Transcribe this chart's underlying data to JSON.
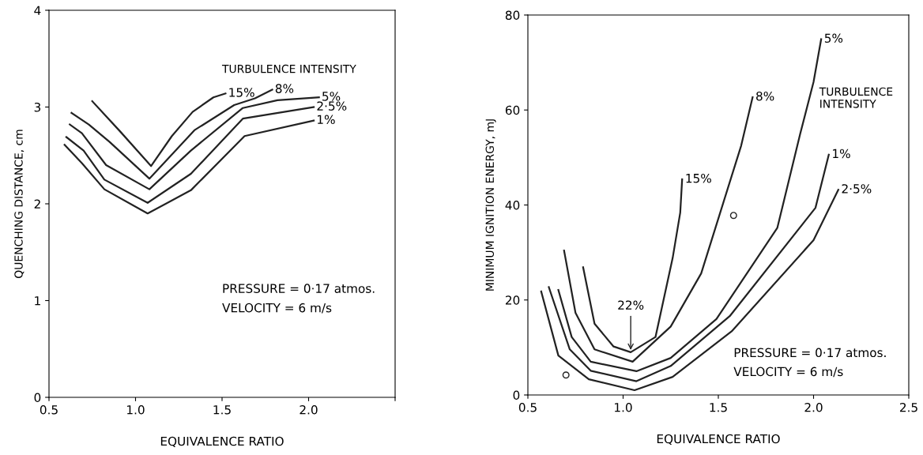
{
  "chart_data": [
    {
      "type": "line",
      "xlabel": "EQUIVALENCE RATIO",
      "ylabel": "QUENCHING DISTANCE, cm",
      "legend_title": "TURBULENCE INTENSITY",
      "xlim": [
        0.5,
        2.5
      ],
      "xticks": [
        {
          "value": 0.5,
          "label": "0.5"
        },
        {
          "value": 1.0,
          "label": "1.0"
        },
        {
          "value": 1.5,
          "label": "1.5"
        },
        {
          "value": 2.0,
          "label": "2.0"
        },
        {
          "value": 2.5,
          "label": null
        }
      ],
      "ylim": [
        0,
        4
      ],
      "yticks": [
        0,
        1,
        2,
        3,
        4
      ],
      "grid": false,
      "legend": false,
      "marker": "none",
      "line_style": "solid",
      "series": [
        {
          "name": "15%",
          "color": "#222222",
          "x": [
            0.75,
            0.91,
            1.09,
            1.21,
            1.33,
            1.45,
            1.52
          ],
          "values": [
            3.06,
            2.75,
            2.39,
            2.7,
            2.95,
            3.1,
            3.14
          ]
        },
        {
          "name": "8%",
          "color": "#222222",
          "x": [
            0.63,
            0.73,
            0.85,
            1.08,
            1.34,
            1.57,
            1.69,
            1.79
          ],
          "values": [
            2.94,
            2.82,
            2.64,
            2.26,
            2.76,
            3.02,
            3.09,
            3.18
          ]
        },
        {
          "name": "5%",
          "color": "#222222",
          "x": [
            0.62,
            0.69,
            0.83,
            1.08,
            1.32,
            1.62,
            1.82,
            2.06
          ],
          "values": [
            2.82,
            2.73,
            2.4,
            2.15,
            2.55,
            2.99,
            3.07,
            3.1
          ]
        },
        {
          "name": "2·5%",
          "color": "#222222",
          "x": [
            0.6,
            0.7,
            0.82,
            1.07,
            1.32,
            1.62,
            2.03
          ],
          "values": [
            2.69,
            2.55,
            2.25,
            2.01,
            2.31,
            2.88,
            3.0
          ]
        },
        {
          "name": "1%",
          "color": "#222222",
          "x": [
            0.59,
            0.69,
            0.82,
            1.07,
            1.32,
            1.63,
            2.03
          ],
          "values": [
            2.61,
            2.42,
            2.15,
            1.9,
            2.14,
            2.7,
            2.86
          ]
        }
      ],
      "annotations": [
        "PRESSURE = 0·17 atmos.",
        "VELOCITY = 6 m/s"
      ]
    },
    {
      "type": "line",
      "xlabel": "EQUIVALENCE RATIO",
      "ylabel": "MINIMUM IGNITION ENERGY, mJ",
      "legend_title": "TURBULENCE\nINTENSITY",
      "xlim": [
        0.5,
        2.5
      ],
      "xticks": [
        {
          "value": 0.5,
          "label": "0.5"
        },
        {
          "value": 1.0,
          "label": "1.0"
        },
        {
          "value": 1.5,
          "label": "1.5"
        },
        {
          "value": 2.0,
          "label": "2.0"
        },
        {
          "value": 2.5,
          "label": "2.5"
        }
      ],
      "ylim": [
        0,
        80
      ],
      "yticks": [
        0,
        20,
        40,
        60,
        80
      ],
      "grid": false,
      "legend": false,
      "marker": "none",
      "line_style": "solid",
      "series": [
        {
          "name": "15%",
          "color": "#222222",
          "x": [
            0.79,
            0.85,
            0.95,
            1.04,
            1.17,
            1.26,
            1.3,
            1.31
          ],
          "values": [
            26.9,
            15.0,
            10.2,
            9.0,
            12.2,
            28.8,
            38.4,
            45.4
          ]
        },
        {
          "name": "8%",
          "color": "#222222",
          "x": [
            0.69,
            0.75,
            0.85,
            1.05,
            1.25,
            1.41,
            1.62,
            1.68
          ],
          "values": [
            30.4,
            17.3,
            9.6,
            7.0,
            14.4,
            25.6,
            52.5,
            62.7
          ]
        },
        {
          "name": "5%",
          "color": "#222222",
          "x": [
            0.66,
            0.73,
            0.83,
            1.07,
            1.25,
            1.49,
            1.81,
            1.93,
            2.0,
            2.04
          ],
          "values": [
            22.1,
            12.2,
            7.0,
            5.0,
            7.8,
            16.0,
            35.2,
            55.0,
            65.9,
            74.9
          ]
        },
        {
          "name": "1%",
          "color": "#222222",
          "x": [
            0.61,
            0.72,
            0.83,
            1.07,
            1.25,
            1.56,
            2.01,
            2.08
          ],
          "values": [
            22.7,
            9.6,
            5.1,
            2.9,
            6.1,
            16.6,
            39.4,
            50.6
          ]
        },
        {
          "name": "2·5%",
          "color": "#222222",
          "x": [
            0.57,
            0.66,
            0.82,
            1.06,
            1.26,
            1.57,
            2.0,
            2.13
          ],
          "values": [
            21.8,
            8.3,
            3.3,
            1.0,
            3.8,
            13.4,
            32.6,
            43.2
          ]
        },
        {
          "type": "scatter",
          "color": "#222222",
          "marker": "circle",
          "x": [
            0.7,
            1.58
          ],
          "values": [
            4.2,
            37.8
          ]
        }
      ],
      "annotations": [
        {
          "text": "22%",
          "x": 1.04,
          "y": 9.0
        },
        "PRESSURE = 0·17 atmos.",
        "VELOCITY = 6 m/s"
      ]
    }
  ]
}
